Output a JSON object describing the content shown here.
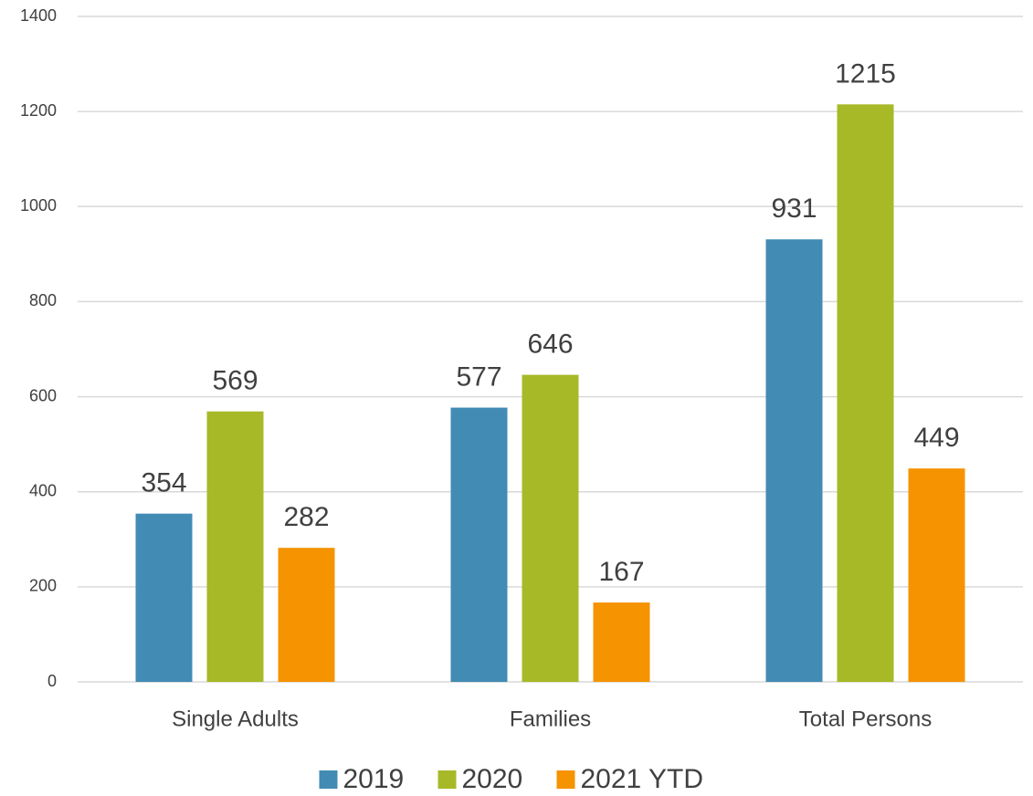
{
  "chart_data": {
    "type": "bar",
    "categories": [
      "Single Adults",
      "Families",
      "Total Persons"
    ],
    "series": [
      {
        "name": "2019",
        "color": "#428bb4",
        "values": [
          354,
          577,
          931
        ]
      },
      {
        "name": "2020",
        "color": "#a7b927",
        "values": [
          569,
          646,
          1215
        ]
      },
      {
        "name": "2021 YTD",
        "color": "#f59300",
        "values": [
          282,
          167,
          449
        ]
      }
    ],
    "ylim": [
      0,
      1400
    ],
    "yticks": [
      0,
      200,
      400,
      600,
      800,
      1000,
      1200,
      1400
    ],
    "grid": true,
    "legend": "bottom"
  }
}
